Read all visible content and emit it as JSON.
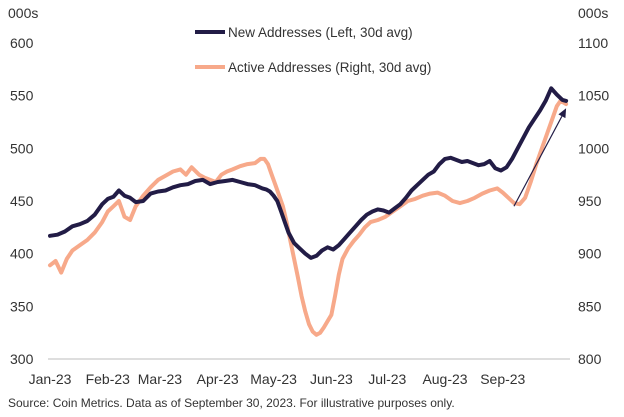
{
  "chart_data": {
    "type": "line",
    "title": "",
    "left_axis": {
      "unit": "000s",
      "ylim": [
        300,
        600
      ],
      "ticks": [
        300,
        350,
        400,
        450,
        500,
        550,
        600
      ]
    },
    "right_axis": {
      "unit": "000s",
      "ylim": [
        800,
        1100
      ],
      "ticks": [
        800,
        850,
        900,
        950,
        1000,
        1050,
        1100
      ]
    },
    "x_axis": {
      "range_days": [
        0,
        278
      ],
      "ticks": [
        {
          "label": "Jan-23",
          "day": 0
        },
        {
          "label": "Feb-23",
          "day": 31
        },
        {
          "label": "Mar-23",
          "day": 59
        },
        {
          "label": "Apr-23",
          "day": 90
        },
        {
          "label": "May-23",
          "day": 120
        },
        {
          "label": "Jun-23",
          "day": 151
        },
        {
          "label": "Jul-23",
          "day": 181
        },
        {
          "label": "Aug-23",
          "day": 212
        },
        {
          "label": "Sep-23",
          "day": 243
        }
      ]
    },
    "series": [
      {
        "name": "New Addresses (Left, 30d avg)",
        "axis": "left",
        "color": "#221c46",
        "points": [
          [
            0,
            417
          ],
          [
            4,
            418
          ],
          [
            8,
            421
          ],
          [
            12,
            426
          ],
          [
            16,
            428
          ],
          [
            20,
            431
          ],
          [
            24,
            437
          ],
          [
            28,
            447
          ],
          [
            31,
            452
          ],
          [
            34,
            454
          ],
          [
            37,
            460
          ],
          [
            40,
            455
          ],
          [
            43,
            453
          ],
          [
            46,
            449
          ],
          [
            50,
            450
          ],
          [
            54,
            457
          ],
          [
            58,
            459
          ],
          [
            62,
            460
          ],
          [
            66,
            463
          ],
          [
            70,
            465
          ],
          [
            74,
            466
          ],
          [
            78,
            469
          ],
          [
            82,
            470
          ],
          [
            86,
            466
          ],
          [
            90,
            468
          ],
          [
            94,
            469
          ],
          [
            98,
            470
          ],
          [
            102,
            468
          ],
          [
            106,
            466
          ],
          [
            110,
            465
          ],
          [
            114,
            462
          ],
          [
            116,
            461
          ],
          [
            118,
            459
          ],
          [
            120,
            455
          ],
          [
            122,
            450
          ],
          [
            124,
            440
          ],
          [
            126,
            430
          ],
          [
            128,
            420
          ],
          [
            131,
            410
          ],
          [
            134,
            405
          ],
          [
            137,
            400
          ],
          [
            140,
            396
          ],
          [
            143,
            398
          ],
          [
            146,
            403
          ],
          [
            149,
            406
          ],
          [
            152,
            404
          ],
          [
            155,
            408
          ],
          [
            158,
            414
          ],
          [
            161,
            420
          ],
          [
            164,
            426
          ],
          [
            167,
            432
          ],
          [
            170,
            437
          ],
          [
            173,
            440
          ],
          [
            176,
            442
          ],
          [
            179,
            441
          ],
          [
            182,
            439
          ],
          [
            185,
            443
          ],
          [
            188,
            447
          ],
          [
            191,
            453
          ],
          [
            194,
            460
          ],
          [
            197,
            465
          ],
          [
            200,
            470
          ],
          [
            203,
            475
          ],
          [
            206,
            478
          ],
          [
            209,
            485
          ],
          [
            212,
            490
          ],
          [
            215,
            491
          ],
          [
            218,
            489
          ],
          [
            221,
            487
          ],
          [
            224,
            488
          ],
          [
            227,
            486
          ],
          [
            230,
            484
          ],
          [
            233,
            485
          ],
          [
            236,
            488
          ],
          [
            239,
            481
          ],
          [
            242,
            479
          ],
          [
            245,
            482
          ],
          [
            248,
            490
          ],
          [
            251,
            500
          ],
          [
            254,
            510
          ],
          [
            257,
            520
          ],
          [
            260,
            528
          ],
          [
            263,
            536
          ],
          [
            266,
            545
          ],
          [
            269,
            557
          ],
          [
            272,
            551
          ],
          [
            275,
            546
          ],
          [
            277,
            545
          ]
        ]
      },
      {
        "name": "Active Addresses (Right, 30d avg)",
        "axis": "right",
        "color": "#f7a98a",
        "points": [
          [
            0,
            889
          ],
          [
            3,
            893
          ],
          [
            6,
            882
          ],
          [
            9,
            895
          ],
          [
            12,
            903
          ],
          [
            16,
            908
          ],
          [
            20,
            913
          ],
          [
            24,
            920
          ],
          [
            28,
            930
          ],
          [
            31,
            940
          ],
          [
            34,
            945
          ],
          [
            37,
            950
          ],
          [
            40,
            935
          ],
          [
            43,
            932
          ],
          [
            46,
            945
          ],
          [
            50,
            955
          ],
          [
            54,
            963
          ],
          [
            58,
            970
          ],
          [
            62,
            974
          ],
          [
            66,
            978
          ],
          [
            70,
            980
          ],
          [
            73,
            975
          ],
          [
            76,
            982
          ],
          [
            80,
            975
          ],
          [
            83,
            972
          ],
          [
            86,
            970
          ],
          [
            89,
            968
          ],
          [
            92,
            975
          ],
          [
            95,
            978
          ],
          [
            98,
            980
          ],
          [
            102,
            983
          ],
          [
            106,
            985
          ],
          [
            110,
            986
          ],
          [
            113,
            990
          ],
          [
            115,
            990
          ],
          [
            117,
            985
          ],
          [
            119,
            975
          ],
          [
            121,
            965
          ],
          [
            123,
            955
          ],
          [
            125,
            945
          ],
          [
            127,
            930
          ],
          [
            129,
            912
          ],
          [
            131,
            895
          ],
          [
            133,
            878
          ],
          [
            135,
            860
          ],
          [
            137,
            845
          ],
          [
            139,
            833
          ],
          [
            141,
            826
          ],
          [
            143,
            823
          ],
          [
            145,
            825
          ],
          [
            147,
            830
          ],
          [
            149,
            836
          ],
          [
            151,
            842
          ],
          [
            153,
            860
          ],
          [
            155,
            880
          ],
          [
            157,
            895
          ],
          [
            160,
            905
          ],
          [
            163,
            912
          ],
          [
            166,
            918
          ],
          [
            169,
            925
          ],
          [
            172,
            930
          ],
          [
            176,
            932
          ],
          [
            180,
            935
          ],
          [
            184,
            940
          ],
          [
            188,
            945
          ],
          [
            192,
            950
          ],
          [
            196,
            952
          ],
          [
            200,
            955
          ],
          [
            204,
            957
          ],
          [
            208,
            958
          ],
          [
            212,
            955
          ],
          [
            216,
            950
          ],
          [
            220,
            948
          ],
          [
            224,
            950
          ],
          [
            228,
            953
          ],
          [
            232,
            957
          ],
          [
            236,
            960
          ],
          [
            240,
            962
          ],
          [
            243,
            958
          ],
          [
            246,
            953
          ],
          [
            249,
            948
          ],
          [
            252,
            947
          ],
          [
            255,
            953
          ],
          [
            258,
            968
          ],
          [
            261,
            985
          ],
          [
            264,
            1000
          ],
          [
            267,
            1015
          ],
          [
            270,
            1030
          ],
          [
            272,
            1040
          ],
          [
            274,
            1045
          ],
          [
            276,
            1043
          ],
          [
            277,
            1042
          ]
        ]
      }
    ],
    "annotations": [
      {
        "type": "arrow",
        "from": [
          249,
          945
        ],
        "to": [
          277,
          1038
        ],
        "axis": "right",
        "color": "#221c46"
      }
    ]
  },
  "source_note": "Source: Coin Metrics. Data as of September 30, 2023. For illustrative purposes only."
}
